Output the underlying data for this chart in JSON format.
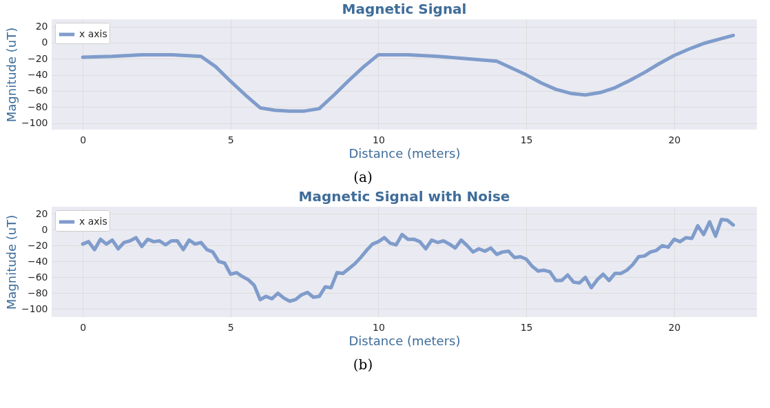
{
  "chart_data": [
    {
      "type": "line",
      "title": "Magnetic Signal",
      "xlabel": "Distance (meters)",
      "ylabel": "Magnitude (uT)",
      "xlim": [
        -1.05,
        22.8
      ],
      "ylim": [
        -108,
        29
      ],
      "xticks": [
        0,
        5,
        10,
        15,
        20
      ],
      "yticks": [
        -100,
        -80,
        -60,
        -40,
        -20,
        0,
        20
      ],
      "grid": true,
      "legend": "top left",
      "annotations": [
        "(a)"
      ],
      "x": [
        0,
        1,
        2,
        3,
        4,
        4.5,
        5,
        5.5,
        6,
        6.5,
        7,
        7.5,
        8,
        8.5,
        9,
        9.5,
        10,
        11,
        12,
        13,
        14,
        15,
        15.5,
        16,
        16.5,
        17,
        17.5,
        18,
        18.5,
        19,
        19.5,
        20,
        20.5,
        21,
        21.5,
        22
      ],
      "series": [
        {
          "name": "x axis",
          "color": "#7f9ccb",
          "values": [
            -18,
            -17,
            -15,
            -15,
            -17,
            -30,
            -48,
            -65,
            -81,
            -84,
            -85,
            -85,
            -82,
            -65,
            -47,
            -30,
            -15,
            -15,
            -17,
            -20,
            -23,
            -40,
            -50,
            -58,
            -63,
            -65,
            -62,
            -56,
            -47,
            -37,
            -26,
            -16,
            -8,
            -1,
            4,
            9
          ]
        }
      ]
    },
    {
      "type": "line",
      "title": "Magnetic Signal with Noise",
      "xlabel": "Distance (meters)",
      "ylabel": "Magnitude (uT)",
      "xlim": [
        -1.05,
        22.8
      ],
      "ylim": [
        -110,
        29
      ],
      "xticks": [
        0,
        5,
        10,
        15,
        20
      ],
      "yticks": [
        -100,
        -80,
        -60,
        -40,
        -20,
        0,
        20
      ],
      "grid": true,
      "legend": "top left",
      "annotations": [
        "(b)"
      ],
      "x": [
        0,
        0.2,
        0.4,
        0.6,
        0.8,
        1.0,
        1.2,
        1.4,
        1.6,
        1.8,
        2.0,
        2.2,
        2.4,
        2.6,
        2.8,
        3.0,
        3.2,
        3.4,
        3.6,
        3.8,
        4.0,
        4.2,
        4.4,
        4.6,
        4.8,
        5.0,
        5.2,
        5.4,
        5.6,
        5.8,
        6.0,
        6.2,
        6.4,
        6.6,
        6.8,
        7.0,
        7.2,
        7.4,
        7.6,
        7.8,
        8.0,
        8.2,
        8.4,
        8.6,
        8.8,
        9.0,
        9.2,
        9.4,
        9.6,
        9.8,
        10.0,
        10.2,
        10.4,
        10.6,
        10.8,
        11.0,
        11.2,
        11.4,
        11.6,
        11.8,
        12.0,
        12.2,
        12.4,
        12.6,
        12.8,
        13.0,
        13.2,
        13.4,
        13.6,
        13.8,
        14.0,
        14.2,
        14.4,
        14.6,
        14.8,
        15.0,
        15.2,
        15.4,
        15.6,
        15.8,
        16.0,
        16.2,
        16.4,
        16.6,
        16.8,
        17.0,
        17.2,
        17.4,
        17.6,
        17.8,
        18.0,
        18.2,
        18.4,
        18.6,
        18.8,
        19.0,
        19.2,
        19.4,
        19.6,
        19.8,
        20.0,
        20.2,
        20.4,
        20.6,
        20.8,
        21.0,
        21.2,
        21.4,
        21.6,
        21.8,
        22.0
      ],
      "series": [
        {
          "name": "x axis",
          "color": "#7f9ccb",
          "values": [
            -18,
            -15,
            -25,
            -12,
            -18,
            -13,
            -24,
            -16,
            -14,
            -10,
            -21,
            -12,
            -15,
            -14,
            -19,
            -14,
            -14,
            -25,
            -13,
            -18,
            -16,
            -25,
            -28,
            -40,
            -42,
            -56,
            -54,
            -59,
            -63,
            -70,
            -88,
            -84,
            -87,
            -80,
            -86,
            -90,
            -88,
            -82,
            -79,
            -85,
            -84,
            -72,
            -73,
            -54,
            -55,
            -49,
            -43,
            -35,
            -26,
            -18,
            -15,
            -10,
            -17,
            -19,
            -6,
            -12,
            -12,
            -15,
            -24,
            -13,
            -16,
            -14,
            -18,
            -23,
            -13,
            -20,
            -28,
            -24,
            -27,
            -23,
            -31,
            -28,
            -27,
            -35,
            -34,
            -37,
            -46,
            -52,
            -51,
            -53,
            -64,
            -64,
            -57,
            -66,
            -67,
            -60,
            -73,
            -63,
            -56,
            -64,
            -55,
            -55,
            -51,
            -44,
            -34,
            -33,
            -28,
            -26,
            -20,
            -22,
            -12,
            -15,
            -10,
            -11,
            5,
            -6,
            10,
            -8,
            13,
            12,
            6
          ]
        }
      ]
    }
  ]
}
